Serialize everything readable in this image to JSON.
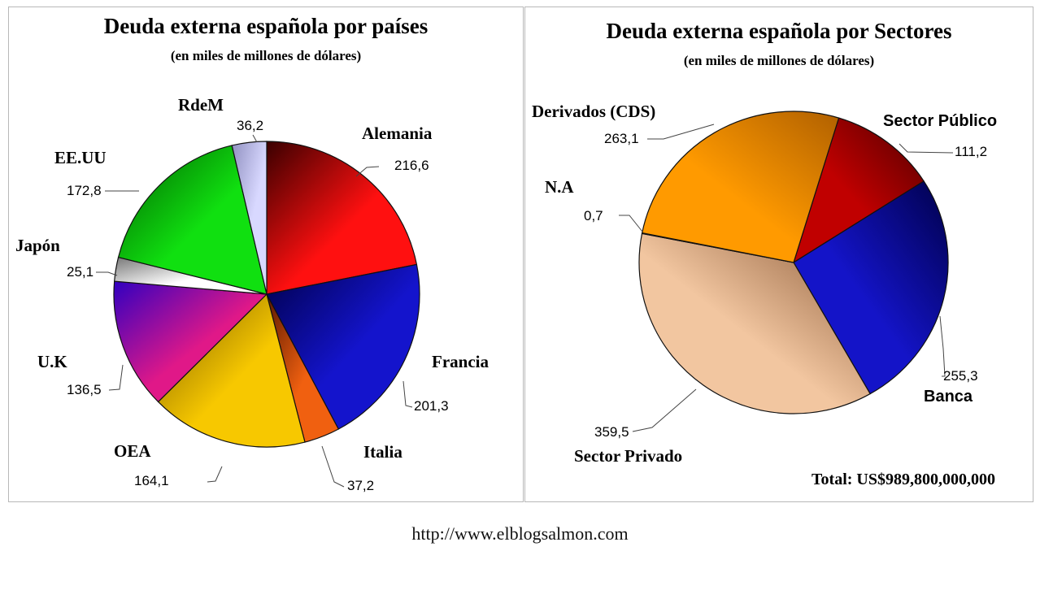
{
  "chart_data": [
    {
      "type": "pie",
      "title": "Deuda externa española por países",
      "subtitle": "(en miles de millones de dólares)",
      "slices": [
        {
          "label": "Alemania",
          "value": 216.6,
          "value_label": "216,6",
          "color": "#ff1010",
          "dark": "#3a0000"
        },
        {
          "label": "Francia",
          "value": 201.3,
          "value_label": "201,3",
          "color": "#1414cc",
          "dark": "#00004a"
        },
        {
          "label": "Italia",
          "value": 37.2,
          "value_label": "37,2",
          "color": "#f06010",
          "dark": "#5a1800"
        },
        {
          "label": "OEA",
          "value": 164.1,
          "value_label": "164,1",
          "color": "#f7c800",
          "dark": "#7a5a00"
        },
        {
          "label": "U.K",
          "value": 136.5,
          "value_label": "136,5",
          "color": "#e01888",
          "dark": "#3000c0"
        },
        {
          "label": "Japón",
          "value": 25.1,
          "value_label": "25,1",
          "color": "#ffffff",
          "dark": "#777777"
        },
        {
          "label": "EE.UU",
          "value": 172.8,
          "value_label": "172,8",
          "color": "#10e010",
          "dark": "#006000"
        },
        {
          "label": "RdeM",
          "value": 36.2,
          "value_label": "36,2",
          "color": "#d8d8ff",
          "dark": "#9090c0"
        }
      ]
    },
    {
      "type": "pie",
      "title": "Deuda externa española por Sectores",
      "subtitle": "(en miles de millones de dólares)",
      "total_label": "Total: US$989,800,000,000",
      "slices": [
        {
          "label": "Sector Público",
          "value": 111.2,
          "value_label": "111,2",
          "color": "#c00000",
          "dark": "#500000"
        },
        {
          "label": "Banca",
          "value": 255.3,
          "value_label": "255,3",
          "color": "#1414c8",
          "dark": "#00004a"
        },
        {
          "label": "Sector Privado",
          "value": 359.5,
          "value_label": "359,5",
          "color": "#f2c6a0",
          "dark": "#8a5a38"
        },
        {
          "label": "N.A",
          "value": 0.7,
          "value_label": "0,7",
          "color": "#cccccc",
          "dark": "#666666"
        },
        {
          "label": "Derivados (CDS)",
          "value": 263.1,
          "value_label": "263,1",
          "color": "#ff9a00",
          "dark": "#b06000"
        }
      ]
    }
  ],
  "footer": {
    "url": "http://www.elblogsalmon.com"
  }
}
